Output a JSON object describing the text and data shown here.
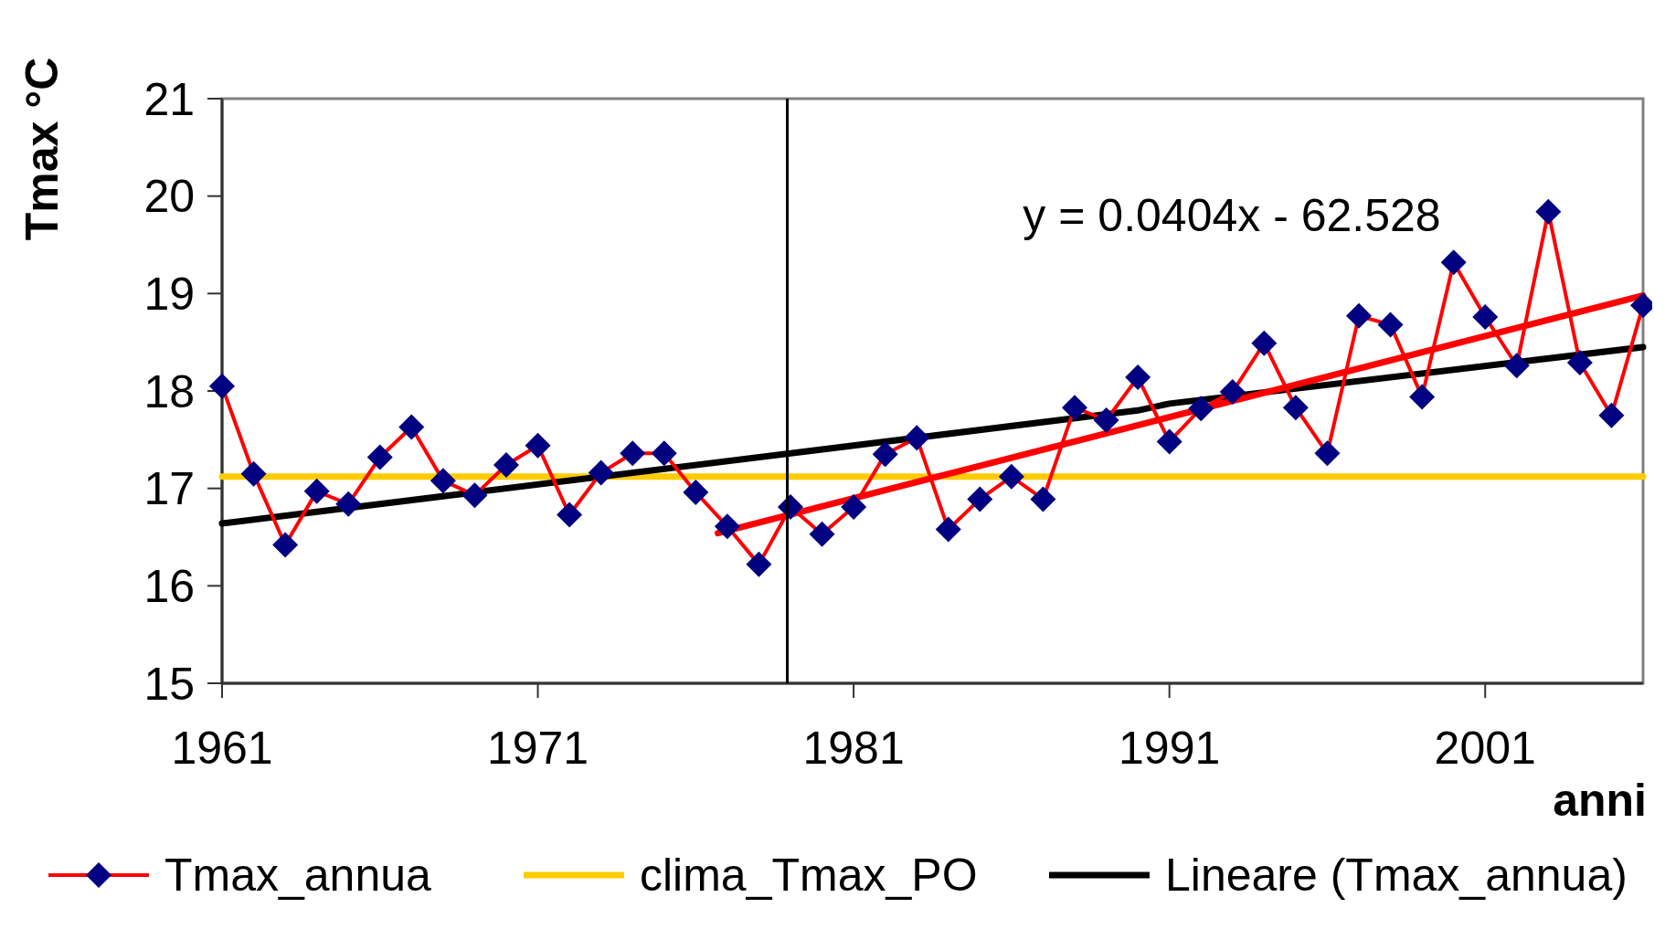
{
  "chart_data": {
    "type": "line",
    "xlabel": "anni",
    "ylabel": "Tmax °C",
    "x": [
      1961,
      1962,
      1963,
      1964,
      1965,
      1966,
      1967,
      1968,
      1969,
      1970,
      1971,
      1972,
      1973,
      1974,
      1975,
      1976,
      1977,
      1978,
      1979,
      1980,
      1981,
      1982,
      1983,
      1984,
      1985,
      1986,
      1987,
      1988,
      1989,
      1990,
      1991,
      1992,
      1993,
      1994,
      1995,
      1996,
      1997,
      1998,
      1999,
      2000,
      2001,
      2002,
      2003,
      2004,
      2005,
      2006
    ],
    "series": [
      {
        "name": "Tmax_annua",
        "color": "#ff0000",
        "marker": "diamond",
        "values": [
          18.05,
          17.15,
          16.42,
          16.97,
          16.84,
          17.32,
          17.63,
          17.08,
          16.93,
          17.24,
          17.44,
          16.73,
          17.16,
          17.36,
          17.36,
          16.96,
          16.61,
          16.22,
          16.81,
          16.53,
          16.81,
          17.35,
          17.52,
          16.58,
          16.89,
          17.12,
          16.89,
          17.83,
          17.7,
          18.14,
          17.48,
          17.82,
          17.99,
          18.49,
          17.83,
          17.36,
          18.77,
          18.68,
          17.94,
          19.32,
          18.76,
          18.26,
          19.84,
          18.29,
          17.75,
          18.88
        ]
      },
      {
        "name": "clima_Tmax_PO",
        "color": "#ffcc00",
        "x": [
          1961,
          2006
        ],
        "values": [
          17.12,
          17.12
        ]
      },
      {
        "name": "Lineare (Tmax_annua)",
        "color": "#000000",
        "x": [
          1961,
          1990,
          1991,
          2006
        ],
        "values": [
          16.64,
          17.8,
          17.87,
          18.45
        ]
      },
      {
        "color": "#ff0000",
        "x": [
          1976.7,
          2006
        ],
        "values": [
          16.54,
          18.98
        ]
      }
    ],
    "xlim": [
      1961,
      2006
    ],
    "xticks": [
      1961,
      1971,
      1981,
      1991,
      2001
    ],
    "ylim": [
      15,
      21
    ],
    "yticks": [
      15,
      16,
      17,
      18,
      19,
      20,
      21
    ],
    "ref_lines": [
      {
        "axis": "x",
        "value": 1978.9,
        "color": "#000000"
      }
    ],
    "annotations": [
      "y = 0.0404x - 62.528"
    ],
    "grid": false,
    "legend": "bottom"
  }
}
